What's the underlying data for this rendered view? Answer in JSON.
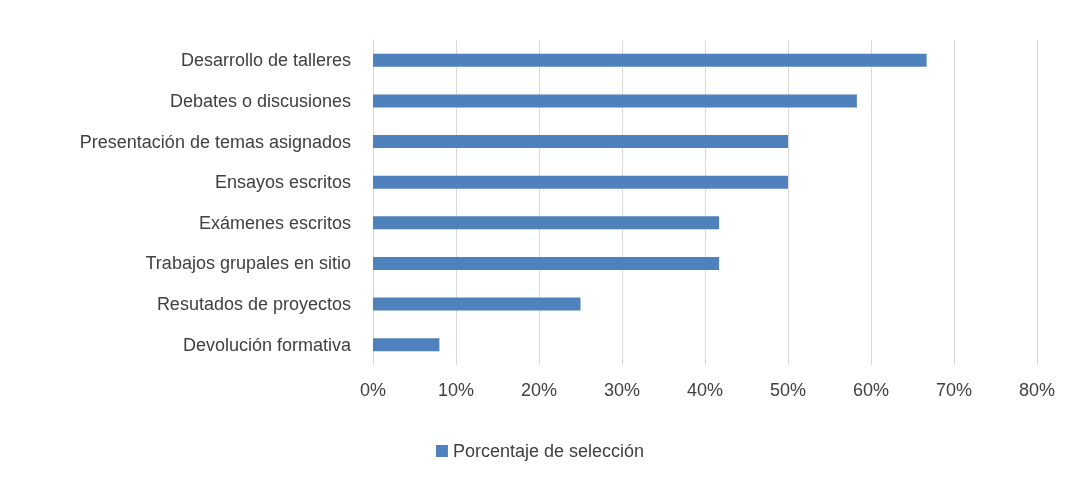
{
  "chart_data": {
    "type": "bar",
    "orientation": "horizontal",
    "categories": [
      "Desarrollo de talleres",
      "Debates o discusiones",
      "Presentación de temas asignados",
      "Ensayos escritos",
      "Exámenes escritos",
      "Trabajos grupales en sitio",
      "Resutados de proyectos",
      "Devolución formativa"
    ],
    "series": [
      {
        "name": "Porcentaje de selección",
        "color": "#4f81bd",
        "values": [
          66.7,
          58.3,
          50,
          50,
          41.7,
          41.7,
          25,
          8
        ]
      }
    ],
    "xlim": [
      0,
      80
    ],
    "xticks": [
      {
        "value": 0,
        "label": "0%"
      },
      {
        "value": 10,
        "label": "10%"
      },
      {
        "value": 20,
        "label": "20%"
      },
      {
        "value": 30,
        "label": "30%"
      },
      {
        "value": 40,
        "label": "40%"
      },
      {
        "value": 50,
        "label": "50%"
      },
      {
        "value": 60,
        "label": "60%"
      },
      {
        "value": 70,
        "label": "70%"
      },
      {
        "value": 80,
        "label": "80%"
      }
    ],
    "grid": "x",
    "legend": "bottom"
  }
}
